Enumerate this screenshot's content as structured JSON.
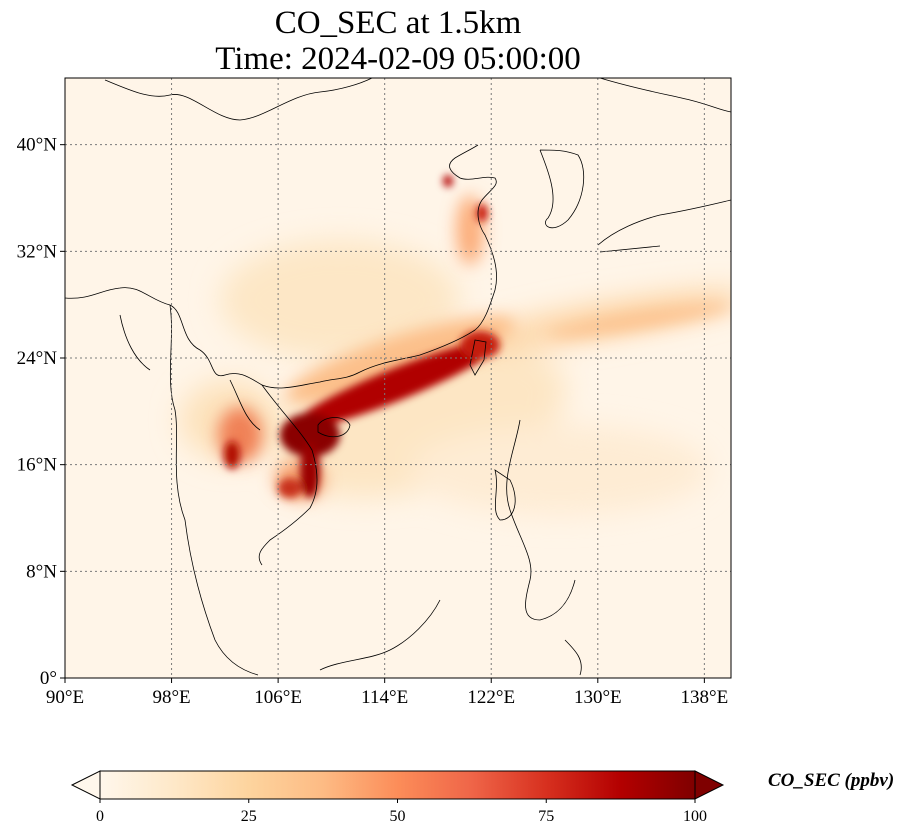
{
  "title": {
    "line1": "CO_SEC at 1.5km",
    "line2": "Time: 2024-02-09 05:00:00"
  },
  "map": {
    "projection": "PlateCarree",
    "lon_range": [
      90,
      140
    ],
    "lat_range": [
      0,
      45
    ],
    "gridlines": "dotted",
    "lon_ticks": [
      "90°E",
      "98°E",
      "106°E",
      "114°E",
      "122°E",
      "130°E",
      "138°E"
    ],
    "lat_ticks": [
      "0°",
      "8°N",
      "16°N",
      "24°N",
      "32°N",
      "40°N"
    ],
    "lon_tick_values": [
      90,
      98,
      106,
      114,
      122,
      130,
      138
    ],
    "lat_tick_values": [
      0,
      8,
      16,
      24,
      32,
      40
    ],
    "field": "CO_SEC",
    "colormap": "OrRd",
    "colormap_stops": [
      "#fff7ec",
      "#fee8c8",
      "#fdd49e",
      "#fdbb84",
      "#fc8d59",
      "#ef6548",
      "#d7301f",
      "#b30000",
      "#7f0000"
    ]
  },
  "colorbar": {
    "label": "CO_SEC (ppbv)",
    "ticks": [
      "0",
      "25",
      "50",
      "75",
      "100"
    ],
    "tick_values": [
      0,
      25,
      50,
      75,
      100
    ],
    "range": [
      0,
      100
    ],
    "extend": "both"
  }
}
